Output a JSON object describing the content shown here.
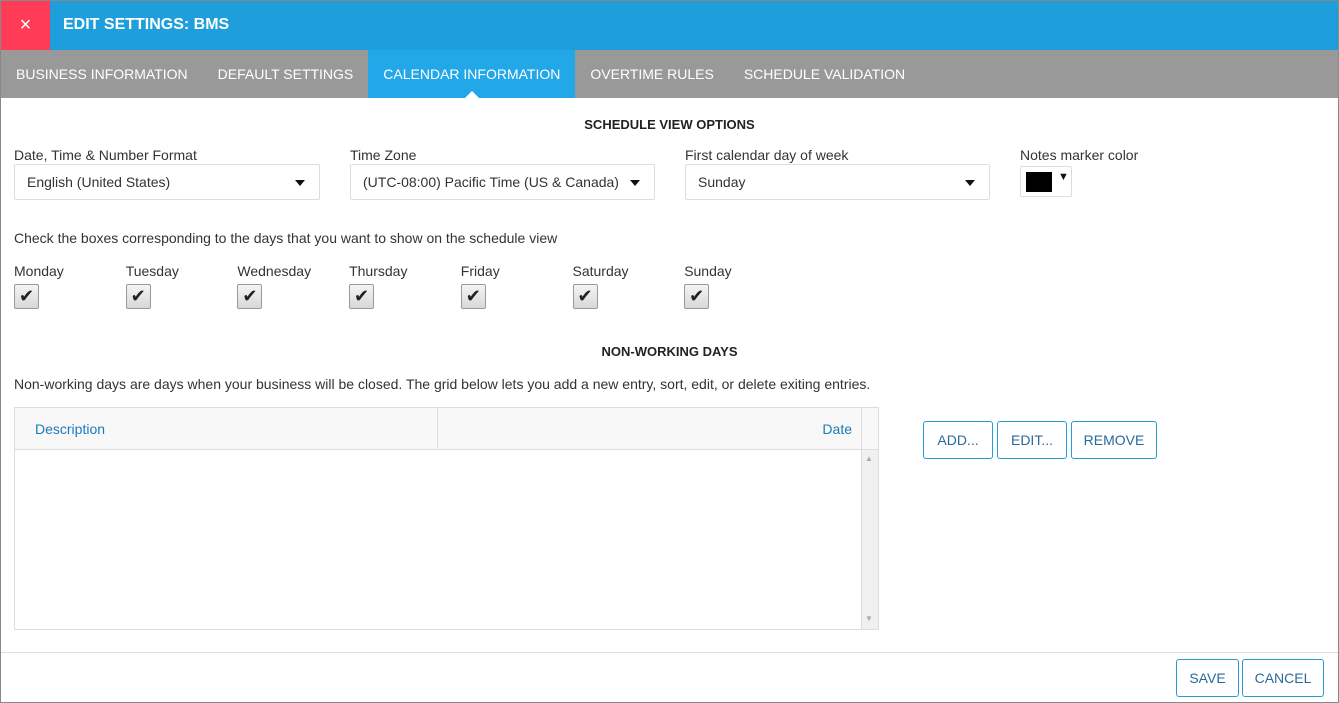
{
  "header": {
    "title": "EDIT SETTINGS: BMS",
    "close_icon": "×"
  },
  "tabs": [
    {
      "label": "BUSINESS INFORMATION"
    },
    {
      "label": "DEFAULT SETTINGS"
    },
    {
      "label": "CALENDAR INFORMATION",
      "active": true
    },
    {
      "label": "OVERTIME RULES"
    },
    {
      "label": "SCHEDULE VALIDATION"
    }
  ],
  "schedule_view": {
    "title": "SCHEDULE VIEW OPTIONS",
    "format": {
      "label": "Date, Time & Number Format",
      "value": "English (United States)"
    },
    "timezone": {
      "label": "Time Zone",
      "value": "(UTC-08:00) Pacific Time (US & Canada)"
    },
    "first_day": {
      "label": "First calendar day of week",
      "value": "Sunday"
    },
    "notes_color": {
      "label": "Notes marker color",
      "value": "#000000"
    },
    "days_hint": "Check the boxes corresponding to the days that you want to show on the schedule view",
    "days": [
      {
        "label": "Monday",
        "checked": true
      },
      {
        "label": "Tuesday",
        "checked": true
      },
      {
        "label": "Wednesday",
        "checked": true
      },
      {
        "label": "Thursday",
        "checked": true
      },
      {
        "label": "Friday",
        "checked": true
      },
      {
        "label": "Saturday",
        "checked": true
      },
      {
        "label": "Sunday",
        "checked": true
      }
    ]
  },
  "non_working": {
    "title": "NON-WORKING DAYS",
    "description": "Non-working days are days when your business will be closed. The grid below lets you add a new entry, sort, edit, or delete exiting entries.",
    "columns": [
      "Description",
      "Date"
    ],
    "rows": [],
    "buttons": {
      "add": "ADD...",
      "edit": "EDIT...",
      "remove": "REMOVE"
    }
  },
  "footer": {
    "save": "SAVE",
    "cancel": "CANCEL"
  },
  "colors": {
    "header": "#1e9fdc",
    "close": "#ff3b55",
    "tabbar": "#999999",
    "active_tab": "#22a7e8"
  }
}
